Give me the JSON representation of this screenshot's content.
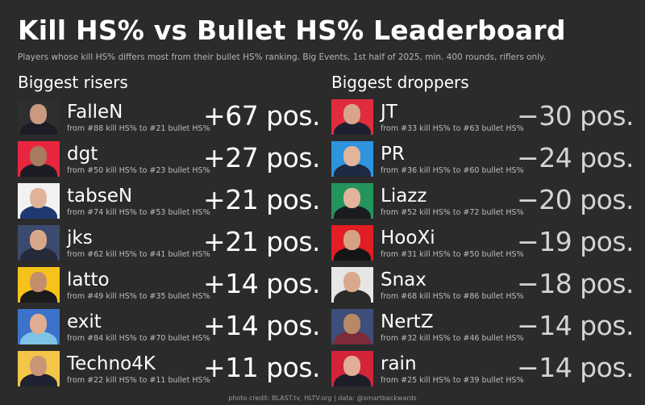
{
  "title": "Kill HS% vs Bullet HS% Leaderboard",
  "subtitle": "Players whose kill HS% differs most from their bullet HS% ranking. Big Events, 1st half of 2025, min. 400 rounds, riflers only.",
  "risers": {
    "heading": "Biggest risers",
    "players": [
      {
        "name": "FalleN",
        "detail": "from #88 kill HS% to #21 bullet HS%",
        "change": "+67 pos.",
        "bg": "#2e2e2e",
        "shirt": "#1b1c25",
        "skin": "#c99a80"
      },
      {
        "name": "dgt",
        "detail": "from #50 kill HS% to #23 bullet HS%",
        "change": "+27 pos.",
        "bg": "#e8263f",
        "shirt": "#1c1c24",
        "skin": "#a87a5f"
      },
      {
        "name": "tabseN",
        "detail": "from #74 kill HS% to #53 bullet HS%",
        "change": "+21 pos.",
        "bg": "#f2f2f2",
        "shirt": "#1e3a70",
        "skin": "#e0b398"
      },
      {
        "name": "jks",
        "detail": "from #62 kill HS% to #41 bullet HS%",
        "change": "+21 pos.",
        "bg": "#3b4a6e",
        "shirt": "#262a3a",
        "skin": "#d9a88a"
      },
      {
        "name": "latto",
        "detail": "from #49 kill HS% to #35 bullet HS%",
        "change": "+14 pos.",
        "bg": "#f6c31a",
        "shirt": "#1a1a1a",
        "skin": "#c48e6c"
      },
      {
        "name": "exit",
        "detail": "from #84 kill HS% to #70 bullet HS%",
        "change": "+14 pos.",
        "bg": "#3a73c9",
        "shirt": "#7ec3e6",
        "skin": "#e0ad92"
      },
      {
        "name": "Techno4K",
        "detail": "from #22 kill HS% to #11 bullet HS%",
        "change": "+11 pos.",
        "bg": "#f3c64a",
        "shirt": "#1f2230",
        "skin": "#c89676"
      }
    ]
  },
  "droppers": {
    "heading": "Biggest droppers",
    "players": [
      {
        "name": "JT",
        "detail": "from #33 kill HS% to #63 bullet HS%",
        "change": "−30 pos.",
        "bg": "#e02c3d",
        "shirt": "#1e2030",
        "skin": "#d8a58a"
      },
      {
        "name": "PR",
        "detail": "from #36 kill HS% to #60 bullet HS%",
        "change": "−24 pos.",
        "bg": "#2d94dd",
        "shirt": "#1d2a44",
        "skin": "#e2b59a"
      },
      {
        "name": "Liazz",
        "detail": "from #52 kill HS% to #72 bullet HS%",
        "change": "−20 pos.",
        "bg": "#23955c",
        "shirt": "#1c1c20",
        "skin": "#e2b49c"
      },
      {
        "name": "HooXi",
        "detail": "from #31 kill HS% to #50 bullet HS%",
        "change": "−19 pos.",
        "bg": "#e21d24",
        "shirt": "#151515",
        "skin": "#d5a286"
      },
      {
        "name": "Snax",
        "detail": "from #68 kill HS% to #86 bullet HS%",
        "change": "−18 pos.",
        "bg": "#e6e6e6",
        "shirt": "#2a2a2a",
        "skin": "#d9a98e"
      },
      {
        "name": "NertZ",
        "detail": "from #32 kill HS% to #46 bullet HS%",
        "change": "−14 pos.",
        "bg": "#3d4f7a",
        "shirt": "#7d2a3a",
        "skin": "#b98866"
      },
      {
        "name": "rain",
        "detail": "from #25 kill HS% to #39 bullet HS%",
        "change": "−14 pos.",
        "bg": "#d3243a",
        "shirt": "#1d1e28",
        "skin": "#e0ae94"
      }
    ]
  },
  "credit": "photo credit: BLAST.tv, HLTV.org | data: @smartbackwards"
}
